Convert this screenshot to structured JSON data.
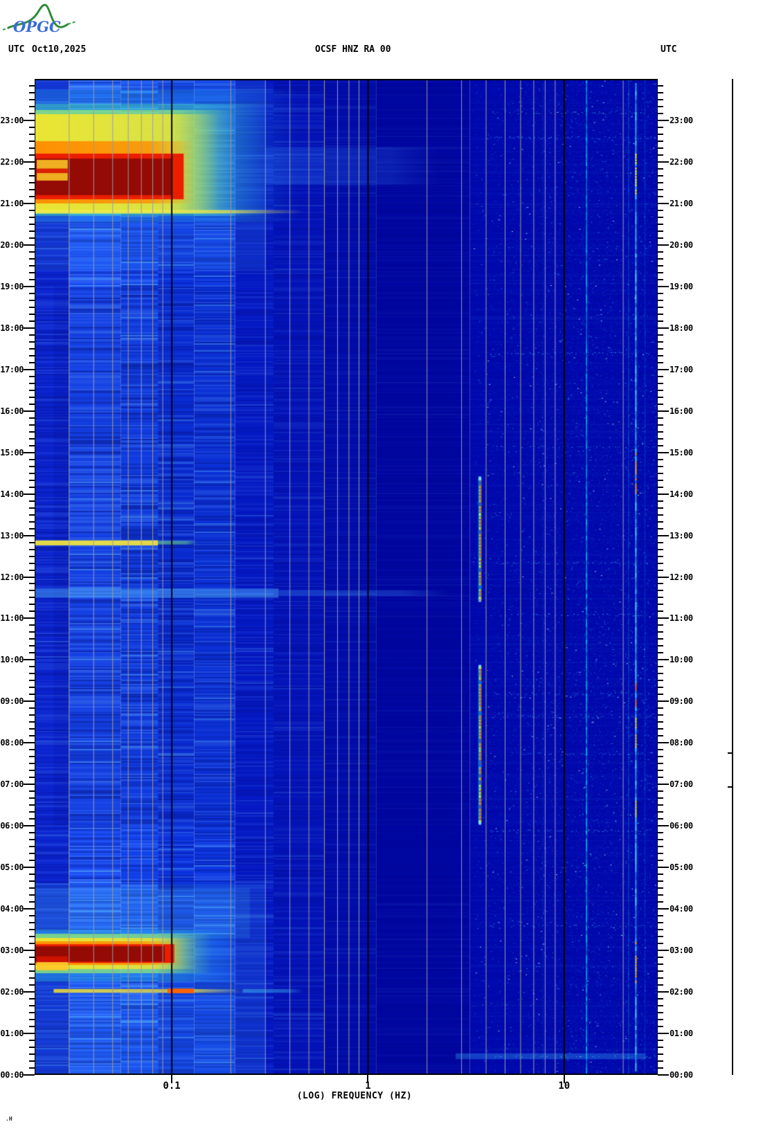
{
  "header": {
    "utc_left": "UTC",
    "date": "Oct10,2025",
    "title": "OCSF HNZ RA 00",
    "utc_right": "UTC"
  },
  "logo": {
    "text": "OPGC"
  },
  "footer_glyph": ".H",
  "chart_data": {
    "type": "spectrogram",
    "title": "OCSF HNZ RA 00",
    "date": "Oct10,2025",
    "colormap": "jet",
    "x_axis": {
      "label": "(LOG) FREQUENCY (HZ)",
      "scale": "log",
      "range_hz": [
        0.02,
        30
      ],
      "major_ticks": [
        0.1,
        1,
        10
      ],
      "tick_labels": [
        "0.1",
        "1",
        "10"
      ],
      "minor_gridlines_hz": [
        0.03,
        0.04,
        0.05,
        0.06,
        0.07,
        0.08,
        0.09,
        0.2,
        0.3,
        0.4,
        0.5,
        0.6,
        0.7,
        0.8,
        0.9,
        2,
        3,
        4,
        5,
        6,
        7,
        8,
        9,
        20
      ],
      "major_gridlines_hz": [
        0.1,
        1,
        10
      ]
    },
    "y_axis": {
      "label_left": "UTC",
      "label_right": "UTC",
      "range_hours": [
        0,
        24
      ],
      "direction": "bottom-to-top",
      "minor_tick_minutes": 10,
      "hour_labels": [
        "00:00",
        "01:00",
        "02:00",
        "03:00",
        "04:00",
        "05:00",
        "06:00",
        "07:00",
        "08:00",
        "09:00",
        "10:00",
        "11:00",
        "12:00",
        "13:00",
        "14:00",
        "15:00",
        "16:00",
        "17:00",
        "18:00",
        "19:00",
        "20:00",
        "21:00",
        "22:00",
        "23:00"
      ]
    },
    "background_bands": [
      {
        "f": [
          0.02,
          0.03
        ],
        "color": "#0b24d0",
        "noise": 0.5
      },
      {
        "f": [
          0.03,
          0.055
        ],
        "color": "#1848f2",
        "noise": 0.85
      },
      {
        "f": [
          0.055,
          0.085
        ],
        "color": "#1342ee",
        "noise": 0.85
      },
      {
        "f": [
          0.085,
          0.13
        ],
        "color": "#0b31df",
        "noise": 0.7
      },
      {
        "f": [
          0.13,
          0.21
        ],
        "color": "#0d36e2",
        "noise": 0.7
      },
      {
        "f": [
          0.21,
          0.33
        ],
        "color": "#0519c4",
        "noise": 0.4
      },
      {
        "f": [
          0.33,
          0.6
        ],
        "color": "#0413b8",
        "noise": 0.3
      },
      {
        "f": [
          0.6,
          1.1
        ],
        "color": "#020ca9",
        "noise": 0.18
      },
      {
        "f": [
          1.1,
          3.3
        ],
        "color": "#0106a0",
        "noise": 0.12
      },
      {
        "f": [
          3.3,
          30
        ],
        "color": "#0009ae",
        "noise": 0.1
      }
    ],
    "diurnal_overlays": [
      {
        "t": [
          0,
          4.6
        ],
        "f": [
          0.02,
          0.3
        ],
        "color": [
          80,
          195,
          255,
          0.14
        ]
      },
      {
        "t": [
          19.4,
          24
        ],
        "f": [
          0.02,
          0.3
        ],
        "color": [
          80,
          195,
          255,
          0.12
        ]
      },
      {
        "t": [
          6.0,
          19.0
        ],
        "f": [
          0.025,
          0.21
        ],
        "color": [
          0,
          0,
          110,
          0.1
        ]
      },
      {
        "t": [
          3.3,
          4.5
        ],
        "f": [
          0.02,
          0.25
        ],
        "color": [
          90,
          220,
          255,
          0.12
        ]
      }
    ],
    "events": [
      {
        "name": "evening-storm-halo",
        "t": [
          20.55,
          23.75
        ],
        "f": [
          0.02,
          0.45
        ],
        "color": [
          40,
          170,
          240,
          0.3
        ],
        "fade": true
      },
      {
        "name": "evening-storm-cyan",
        "t": [
          20.7,
          23.4
        ],
        "f": [
          0.02,
          0.3
        ],
        "color": [
          70,
          225,
          180,
          0.45
        ],
        "fade": true
      },
      {
        "name": "evening-storm-green",
        "t": [
          20.75,
          23.25
        ],
        "f": [
          0.02,
          0.21
        ],
        "color": [
          160,
          240,
          110,
          0.7
        ],
        "fade": true
      },
      {
        "name": "evening-storm-yellow",
        "t": [
          20.8,
          23.15
        ],
        "f": [
          0.02,
          0.175
        ],
        "color": [
          250,
          232,
          40,
          0.88
        ],
        "fade": true
      },
      {
        "name": "line-2048",
        "t": [
          20.76,
          20.84
        ],
        "f": [
          0.02,
          0.47
        ],
        "color": [
          245,
          235,
          70,
          0.85
        ],
        "fade": true
      },
      {
        "name": "evening-storm-orange",
        "t": [
          21.0,
          22.5
        ],
        "f": [
          0.02,
          0.13
        ],
        "color": [
          255,
          140,
          0,
          0.95
        ],
        "fade": true
      },
      {
        "name": "evening-storm-red",
        "t": [
          21.1,
          22.2
        ],
        "f": [
          0.02,
          0.115
        ],
        "color": [
          235,
          30,
          0,
          1
        ],
        "fade": false
      },
      {
        "name": "evening-storm-core",
        "t": [
          21.2,
          22.08
        ],
        "f": [
          0.02,
          0.1
        ],
        "color": [
          148,
          10,
          5,
          1
        ],
        "fade": false
      },
      {
        "name": "evening-storm-left-col-yellow",
        "t": [
          21.55,
          22.05
        ],
        "f": [
          0.0205,
          0.0295
        ],
        "color": [
          255,
          205,
          40,
          0.85
        ],
        "fade": false
      },
      {
        "name": "evening-storm-left-col-red",
        "t": [
          21.73,
          21.84
        ],
        "f": [
          0.0205,
          0.0295
        ],
        "color": [
          215,
          25,
          0,
          0.95
        ],
        "fade": false
      },
      {
        "name": "evening-storm-hf-bleed",
        "t": [
          21.45,
          22.35
        ],
        "f": [
          0.3,
          2.3
        ],
        "color": [
          60,
          150,
          255,
          0.2
        ],
        "fade": true
      },
      {
        "name": "morning-storm-halo",
        "t": [
          2.25,
          3.5
        ],
        "f": [
          0.02,
          0.22
        ],
        "color": [
          45,
          190,
          240,
          0.4
        ],
        "fade": true
      },
      {
        "name": "morning-storm-green",
        "t": [
          2.45,
          3.4
        ],
        "f": [
          0.02,
          0.16
        ],
        "color": [
          150,
          240,
          110,
          0.75
        ],
        "fade": true
      },
      {
        "name": "morning-storm-yellow",
        "t": [
          2.55,
          3.3
        ],
        "f": [
          0.02,
          0.135
        ],
        "color": [
          250,
          232,
          40,
          0.9
        ],
        "fade": true
      },
      {
        "name": "morning-storm-orange",
        "t": [
          2.65,
          3.22
        ],
        "f": [
          0.02,
          0.115
        ],
        "color": [
          255,
          140,
          0,
          0.95
        ],
        "fade": true
      },
      {
        "name": "morning-storm-red",
        "t": [
          2.7,
          3.15
        ],
        "f": [
          0.02,
          0.103
        ],
        "color": [
          235,
          30,
          0,
          1
        ],
        "fade": false
      },
      {
        "name": "morning-storm-core",
        "t": [
          2.73,
          3.1
        ],
        "f": [
          0.02,
          0.092
        ],
        "color": [
          148,
          10,
          5,
          1
        ],
        "fade": false
      },
      {
        "name": "morning-storm-left-col-yellow",
        "t": [
          2.52,
          2.72
        ],
        "f": [
          0.0205,
          0.0295
        ],
        "color": [
          255,
          200,
          40,
          0.9
        ],
        "fade": false
      },
      {
        "name": "morning-storm-left-col-red",
        "t": [
          2.72,
          2.86
        ],
        "f": [
          0.0205,
          0.0295
        ],
        "color": [
          205,
          20,
          0,
          0.95
        ],
        "fade": false
      },
      {
        "name": "line-0202-yellow",
        "t": [
          1.98,
          2.07
        ],
        "f": [
          0.025,
          0.23
        ],
        "color": [
          245,
          225,
          50,
          0.85
        ],
        "fade": true
      },
      {
        "name": "line-0202-orange",
        "t": [
          1.97,
          2.08
        ],
        "f": [
          0.095,
          0.13
        ],
        "color": [
          255,
          95,
          0,
          0.95
        ],
        "fade": false
      },
      {
        "name": "line-0202-tail",
        "t": [
          1.98,
          2.07
        ],
        "f": [
          0.23,
          0.47
        ],
        "color": [
          70,
          200,
          255,
          0.45
        ],
        "fade": true
      },
      {
        "name": "line-1248-yellow",
        "t": [
          12.76,
          12.88
        ],
        "f": [
          0.02,
          0.085
        ],
        "color": [
          248,
          235,
          60,
          0.9
        ],
        "fade": false
      },
      {
        "name": "line-1248-tail",
        "t": [
          12.78,
          12.87
        ],
        "f": [
          0.085,
          0.135
        ],
        "color": [
          120,
          235,
          130,
          0.55
        ],
        "fade": true
      },
      {
        "name": "line-1138",
        "t": [
          11.5,
          11.72
        ],
        "f": [
          0.02,
          0.35
        ],
        "color": [
          85,
          185,
          255,
          0.45
        ],
        "fade": false
      },
      {
        "name": "line-1138-tail",
        "t": [
          11.54,
          11.68
        ],
        "f": [
          0.35,
          2.6
        ],
        "color": [
          70,
          165,
          255,
          0.28
        ],
        "fade": true
      },
      {
        "name": "streak-0025",
        "t": [
          0.38,
          0.52
        ],
        "f": [
          2.8,
          26
        ],
        "color": [
          60,
          190,
          255,
          0.3
        ],
        "fade": false
      }
    ],
    "vertical_lines": [
      {
        "name": "tremor-dash-upper",
        "f": 3.72,
        "t": [
          11.45,
          14.37
        ],
        "style": "hot"
      },
      {
        "name": "tremor-dash-lower",
        "f": 3.72,
        "t": [
          6.08,
          9.83
        ],
        "style": "hot"
      },
      {
        "name": "line-13hz",
        "f": 13.0,
        "t": [
          0,
          24
        ],
        "style": "cyan",
        "color": [
          0,
          225,
          255,
          0.7
        ],
        "width": 1.6
      },
      {
        "name": "line-23hz",
        "f": 23.2,
        "t": [
          0.15,
          23.9
        ],
        "style": "cyan",
        "color": [
          40,
          235,
          255,
          0.85
        ],
        "width": 2,
        "hot_segments": [
          {
            "t": [
              13.9,
              15.05
            ],
            "color": [
              255,
              120,
              0,
              0.95
            ]
          },
          {
            "t": [
              8.9,
              9.45
            ],
            "color": [
              255,
              60,
              0,
              0.9
            ]
          },
          {
            "t": [
              7.9,
              8.6
            ],
            "color": [
              255,
              190,
              0,
              0.85
            ]
          },
          {
            "t": [
              2.2,
              3.2
            ],
            "color": [
              255,
              150,
              0,
              0.9
            ]
          },
          {
            "t": [
              21.2,
              22.4
            ],
            "color": [
              255,
              215,
              0,
              0.9
            ]
          },
          {
            "t": [
              6.2,
              6.6
            ],
            "color": [
              255,
              170,
              0,
              0.85
            ]
          }
        ]
      },
      {
        "name": "line-21hz",
        "f": 21.3,
        "t": [
          0,
          24
        ],
        "style": "cyan",
        "color": [
          0,
          205,
          255,
          0.32
        ],
        "width": 1.2
      },
      {
        "name": "line-26hz",
        "f": 25.8,
        "t": [
          0,
          24
        ],
        "style": "cyan",
        "color": [
          0,
          195,
          255,
          0.25
        ],
        "width": 1
      },
      {
        "name": "line-8hz",
        "f": 7.8,
        "t": [
          0,
          24
        ],
        "style": "cyan",
        "color": [
          40,
          150,
          255,
          0.16
        ],
        "width": 1
      }
    ],
    "noise": {
      "speckle_f": [
        3.4,
        30
      ],
      "speckle_count": 15000,
      "streak_times": [
        23.2,
        22.6,
        17.4,
        15.15,
        12.35,
        11.1,
        9.2,
        8.65,
        7.75,
        5.9,
        3.6,
        0.45
      ],
      "streak_f": [
        4.2,
        29
      ]
    }
  }
}
